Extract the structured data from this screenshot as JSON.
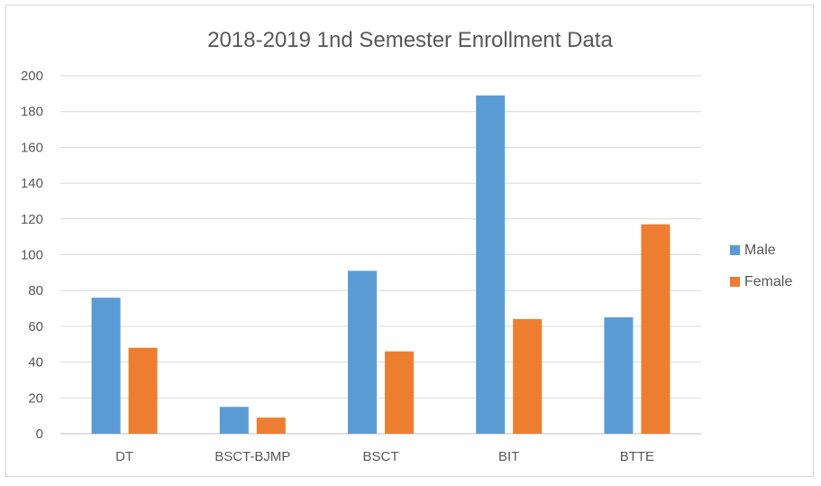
{
  "chart_data": {
    "type": "bar",
    "title": "2018-2019 1nd Semester Enrollment Data",
    "xlabel": "",
    "ylabel": "",
    "categories": [
      "DT",
      "BSCT-BJMP",
      "BSCT",
      "BIT",
      "BTTE"
    ],
    "series": [
      {
        "name": "Male",
        "color": "#5b9bd5",
        "values": [
          76,
          15,
          91,
          189,
          65
        ]
      },
      {
        "name": "Female",
        "color": "#ed7d31",
        "values": [
          48,
          9,
          46,
          64,
          117
        ]
      }
    ],
    "ylim": [
      0,
      200
    ],
    "yticks": [
      "0",
      "20",
      "40",
      "60",
      "80",
      "100",
      "120",
      "140",
      "160",
      "180",
      "200"
    ],
    "grid": true,
    "legend_position": "right"
  }
}
